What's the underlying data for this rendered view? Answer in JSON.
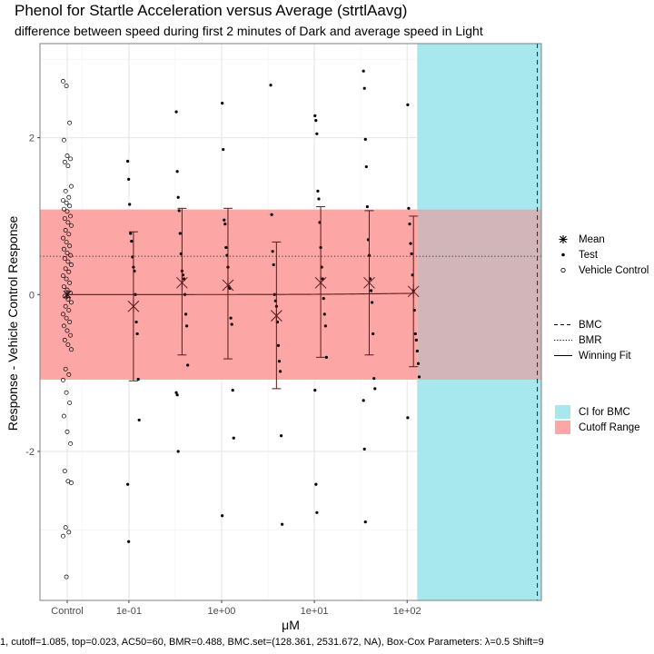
{
  "title": "Phenol for Startle Acceleration versus Average (strtlAavg)",
  "subtitle": "difference between speed during first 2 minutes of Dark and average speed in Light",
  "caption": "1, cutoff=1.085, top=0.023, AC50=60, BMR=0.488, BMC.set=(128.361, 2531.672, NA), Box-Cox Parameters: λ=0.5 Shift=9",
  "legend": {
    "points": [
      {
        "label": "Mean",
        "shape": "asterisk"
      },
      {
        "label": "Test",
        "shape": "filled-dot"
      },
      {
        "label": "Vehicle Control",
        "shape": "open-circle"
      }
    ],
    "lines": [
      {
        "label": "BMC",
        "style": "dashed"
      },
      {
        "label": "BMR",
        "style": "dotted"
      },
      {
        "label": "Winning Fit",
        "style": "solid"
      }
    ],
    "fills": [
      {
        "label": "CI for BMC",
        "color": "#a6e8ee"
      },
      {
        "label": "Cutoff Range",
        "color": "#fda6a6"
      }
    ]
  },
  "colors": {
    "ci_fill": "#a6e8ee",
    "cutoff_fill": "#fda6a6",
    "overlap_fill": "#d1b5b8",
    "fit_line": "#5a1a1a",
    "error_bar": "#5a1a1a"
  },
  "chart_data": {
    "type": "scatter",
    "xlabel": "μM",
    "ylabel": "Response - Vehicle Control Response",
    "x_scale": "log10",
    "x_ticks": [
      {
        "label": "Control",
        "value": null
      },
      {
        "label": "1e-01",
        "value": 0.1
      },
      {
        "label": "1e+00",
        "value": 1
      },
      {
        "label": "1e+01",
        "value": 10
      },
      {
        "label": "1e+02",
        "value": 100
      }
    ],
    "y_ticks": [
      -2,
      0,
      2
    ],
    "ylim": [
      -3.9,
      3.2
    ],
    "xlim": [
      0.011,
      2800
    ],
    "cutoff": 1.085,
    "bmr": 0.488,
    "bmc": 2531.672,
    "bmc_ci": [
      128.361,
      2800
    ],
    "fit": {
      "top": 0.023,
      "ac50": 60
    },
    "means": [
      {
        "x": 0.112,
        "mean": -0.15,
        "lower": -1.1,
        "upper": 0.8
      },
      {
        "x": 0.374,
        "mean": 0.15,
        "lower": -0.77,
        "upper": 1.1
      },
      {
        "x": 1.17,
        "mean": 0.12,
        "lower": -0.82,
        "upper": 1.1
      },
      {
        "x": 3.9,
        "mean": -0.27,
        "lower": -1.2,
        "upper": 0.67
      },
      {
        "x": 11.7,
        "mean": 0.15,
        "lower": -0.8,
        "upper": 1.12
      },
      {
        "x": 39,
        "mean": 0.15,
        "lower": -0.77,
        "upper": 1.07
      },
      {
        "x": 117,
        "mean": 0.04,
        "lower": -0.92,
        "upper": 1.0
      }
    ],
    "test_points": [
      {
        "x": 0.112,
        "y": [
          1.7,
          1.47,
          1.15,
          0.78,
          0.68,
          0.48,
          0.35,
          0.3,
          0.0,
          -0.35,
          -0.5,
          -1.08,
          -1.6,
          -2.42,
          -3.15
        ]
      },
      {
        "x": 0.374,
        "y": [
          2.33,
          1.57,
          1.24,
          1.07,
          0.78,
          0.52,
          0.3,
          0.25,
          0.2,
          0.0,
          -0.25,
          -0.4,
          -0.9,
          -1.25,
          -1.28,
          -2.0
        ]
      },
      {
        "x": 1.17,
        "y": [
          2.44,
          1.85,
          0.95,
          0.9,
          0.6,
          0.5,
          0.35,
          0.1,
          0.08,
          -0.3,
          -0.38,
          -1.22,
          -1.83,
          -2.82
        ]
      },
      {
        "x": 3.9,
        "y": [
          2.67,
          1.02,
          0.55,
          0.38,
          0.0,
          -0.08,
          -0.15,
          -0.35,
          -0.65,
          -0.85,
          -0.98,
          -1.8,
          -2.93
        ]
      },
      {
        "x": 11.7,
        "y": [
          2.28,
          2.22,
          2.05,
          1.32,
          1.22,
          0.92,
          0.6,
          0.35,
          0.2,
          -0.05,
          -0.25,
          -0.4,
          -0.8,
          -1.22,
          -2.42,
          -2.78
        ]
      },
      {
        "x": 39,
        "y": [
          2.85,
          2.63,
          1.98,
          1.63,
          1.12,
          0.7,
          0.5,
          0.2,
          0.05,
          -0.1,
          -0.5,
          -1.07,
          -1.2,
          -1.35,
          -1.97,
          -2.9
        ]
      },
      {
        "x": 117,
        "y": [
          2.42,
          1.1,
          0.9,
          0.65,
          0.52,
          0.25,
          0.05,
          -0.2,
          -0.5,
          -0.58,
          -0.72,
          -0.88,
          -1.05,
          -1.57
        ]
      }
    ],
    "control_points": [
      2.72,
      2.66,
      2.19,
      1.97,
      1.77,
      1.73,
      1.69,
      1.64,
      1.38,
      1.32,
      1.24,
      1.2,
      1.17,
      1.13,
      1.09,
      1.06,
      1.0,
      0.97,
      0.92,
      0.88,
      0.82,
      0.77,
      0.72,
      0.67,
      0.62,
      0.58,
      0.53,
      0.5,
      0.46,
      0.42,
      0.38,
      0.33,
      0.29,
      0.24,
      0.2,
      0.15,
      0.1,
      0.06,
      0.02,
      -0.02,
      -0.06,
      -0.1,
      -0.15,
      -0.2,
      -0.25,
      -0.3,
      -0.35,
      -0.4,
      -0.46,
      -0.52,
      -0.58,
      -0.64,
      -0.7,
      -0.95,
      -1.02,
      -1.09,
      -1.25,
      -1.38,
      -1.55,
      -1.75,
      -1.9,
      -2.25,
      -2.38,
      -2.4,
      -2.97,
      -3.03,
      -3.08,
      -3.6
    ]
  }
}
